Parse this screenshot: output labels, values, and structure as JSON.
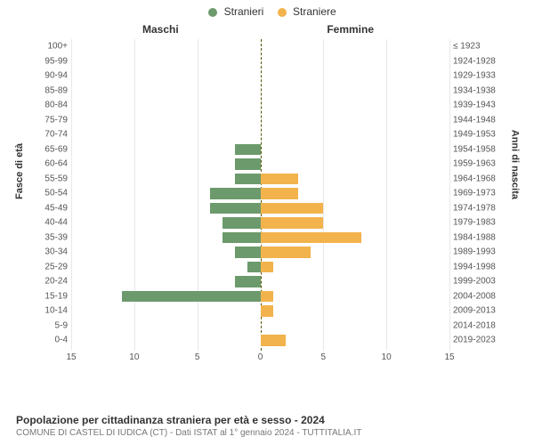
{
  "legend": {
    "m_label": "Stranieri",
    "f_label": "Straniere",
    "m_color": "#6c9a6c",
    "f_color": "#f2b34c"
  },
  "chart": {
    "type": "population-pyramid",
    "gender_left_title": "Maschi",
    "gender_right_title": "Femmine",
    "y_left_label": "Fasce di età",
    "y_right_label": "Anni di nascita",
    "xmax": 15,
    "x_ticks_left": [
      15,
      10,
      5,
      0
    ],
    "x_ticks_right": [
      0,
      5,
      10,
      15
    ],
    "grid_color": "#e8e8e8",
    "center_line_color": "#555500",
    "background": "#ffffff",
    "rows": [
      {
        "age": "100+",
        "birth": "≤ 1923",
        "m": 0,
        "f": 0
      },
      {
        "age": "95-99",
        "birth": "1924-1928",
        "m": 0,
        "f": 0
      },
      {
        "age": "90-94",
        "birth": "1929-1933",
        "m": 0,
        "f": 0
      },
      {
        "age": "85-89",
        "birth": "1934-1938",
        "m": 0,
        "f": 0
      },
      {
        "age": "80-84",
        "birth": "1939-1943",
        "m": 0,
        "f": 0
      },
      {
        "age": "75-79",
        "birth": "1944-1948",
        "m": 0,
        "f": 0
      },
      {
        "age": "70-74",
        "birth": "1949-1953",
        "m": 0,
        "f": 0
      },
      {
        "age": "65-69",
        "birth": "1954-1958",
        "m": 2,
        "f": 0
      },
      {
        "age": "60-64",
        "birth": "1959-1963",
        "m": 2,
        "f": 0
      },
      {
        "age": "55-59",
        "birth": "1964-1968",
        "m": 2,
        "f": 3
      },
      {
        "age": "50-54",
        "birth": "1969-1973",
        "m": 4,
        "f": 3
      },
      {
        "age": "45-49",
        "birth": "1974-1978",
        "m": 4,
        "f": 5
      },
      {
        "age": "40-44",
        "birth": "1979-1983",
        "m": 3,
        "f": 5
      },
      {
        "age": "35-39",
        "birth": "1984-1988",
        "m": 3,
        "f": 8
      },
      {
        "age": "30-34",
        "birth": "1989-1993",
        "m": 2,
        "f": 4
      },
      {
        "age": "25-29",
        "birth": "1994-1998",
        "m": 1,
        "f": 1
      },
      {
        "age": "20-24",
        "birth": "1999-2003",
        "m": 2,
        "f": 0
      },
      {
        "age": "15-19",
        "birth": "2004-2008",
        "m": 11,
        "f": 1
      },
      {
        "age": "10-14",
        "birth": "2009-2013",
        "m": 0,
        "f": 1
      },
      {
        "age": "5-9",
        "birth": "2014-2018",
        "m": 0,
        "f": 0
      },
      {
        "age": "0-4",
        "birth": "2019-2023",
        "m": 0,
        "f": 2
      }
    ]
  },
  "footer": {
    "title": "Popolazione per cittadinanza straniera per età e sesso - 2024",
    "subtitle": "COMUNE DI CASTEL DI IUDICA (CT) - Dati ISTAT al 1° gennaio 2024 - TUTTITALIA.IT"
  }
}
